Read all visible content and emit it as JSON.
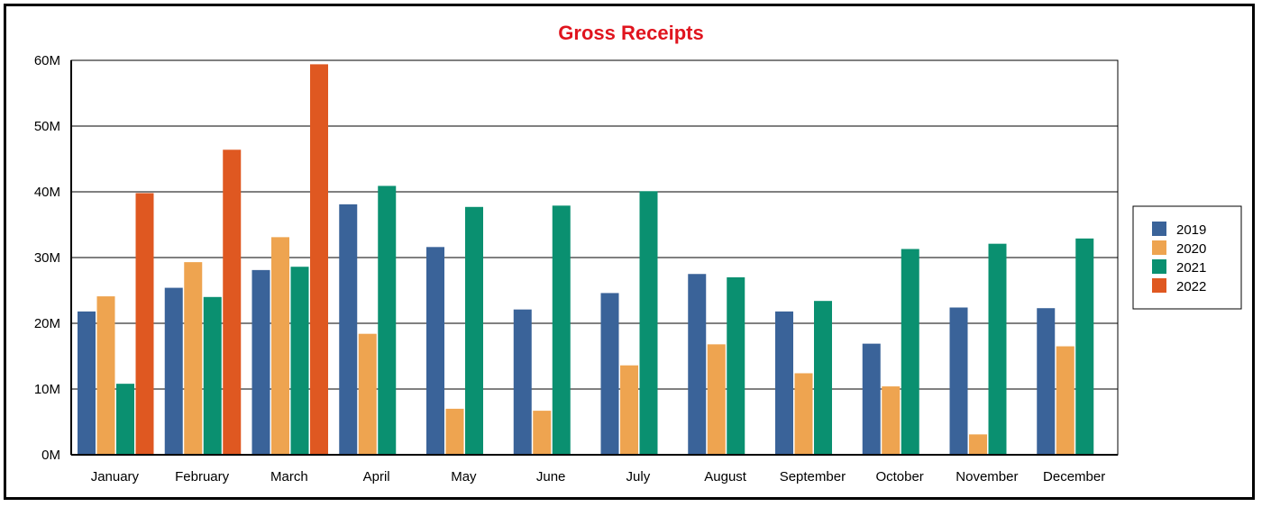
{
  "chart_data": {
    "type": "bar",
    "title": "Gross Receipts",
    "title_color": "#e0141e",
    "xlabel": "",
    "ylabel": "",
    "ylim": [
      0,
      60000000
    ],
    "y_ticks": [
      {
        "value": 0,
        "label": "0M"
      },
      {
        "value": 10000000,
        "label": "10M"
      },
      {
        "value": 20000000,
        "label": "20M"
      },
      {
        "value": 30000000,
        "label": "30M"
      },
      {
        "value": 40000000,
        "label": "40M"
      },
      {
        "value": 50000000,
        "label": "50M"
      },
      {
        "value": 60000000,
        "label": "60M"
      }
    ],
    "grid": true,
    "legend_position": "right",
    "categories": [
      "January",
      "February",
      "March",
      "April",
      "May",
      "June",
      "July",
      "August",
      "September",
      "October",
      "November",
      "December"
    ],
    "series": [
      {
        "name": "2019",
        "color": "#3a6399",
        "values": [
          21800000,
          25400000,
          28100000,
          38100000,
          31600000,
          22100000,
          24600000,
          27500000,
          21800000,
          16900000,
          22400000,
          22300000
        ]
      },
      {
        "name": "2020",
        "color": "#eea450",
        "values": [
          24100000,
          29300000,
          33100000,
          18400000,
          7000000,
          6700000,
          13600000,
          16800000,
          12400000,
          10400000,
          3100000,
          16500000
        ]
      },
      {
        "name": "2021",
        "color": "#0a9070",
        "values": [
          10800000,
          24000000,
          28600000,
          40900000,
          37700000,
          37900000,
          40100000,
          27000000,
          23400000,
          31300000,
          32100000,
          32900000
        ]
      },
      {
        "name": "2022",
        "color": "#df5821",
        "values": [
          39800000,
          46400000,
          59400000,
          null,
          null,
          null,
          null,
          null,
          null,
          null,
          null,
          null
        ]
      }
    ]
  }
}
